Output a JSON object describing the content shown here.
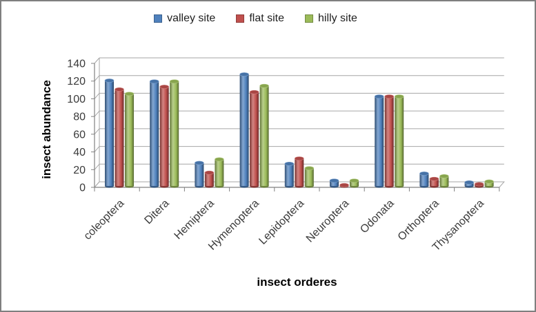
{
  "window": {
    "background": "#ffffff",
    "frame_border_color": "#7f7f7f"
  },
  "chart_data": {
    "type": "bar",
    "bar_style": "cylinder",
    "view": "3d",
    "title": "",
    "xlabel": "insect orderes",
    "ylabel": "insect abundance",
    "ylim": [
      0,
      140
    ],
    "ytick_step": 20,
    "yticks": [
      0,
      20,
      40,
      60,
      80,
      100,
      120,
      140
    ],
    "grid": true,
    "legend_position": "top-center",
    "categories": [
      "coleoptera",
      "Ditera",
      "Hemiptera",
      "Hymenoptera",
      "Lepidoptera",
      "Neuroptera",
      "Odonata",
      "Orthoptera",
      "Thysanoptera"
    ],
    "series": [
      {
        "name": "valley site",
        "color": "#4F81BD",
        "values": [
          119,
          118,
          26,
          126,
          25,
          6,
          101,
          14,
          4
        ]
      },
      {
        "name": "flat site",
        "color": "#C0504D",
        "values": [
          109,
          112,
          15,
          106,
          31,
          1,
          101,
          8,
          2
        ]
      },
      {
        "name": "hilly site",
        "color": "#9BBB59",
        "values": [
          104,
          118,
          30,
          113,
          20,
          6,
          101,
          11,
          5
        ]
      }
    ],
    "colors": {
      "gridline": "#A6A6A6",
      "axis": "#808080",
      "tick_label": "#3A3A3A",
      "axis_title": "#000000"
    }
  }
}
